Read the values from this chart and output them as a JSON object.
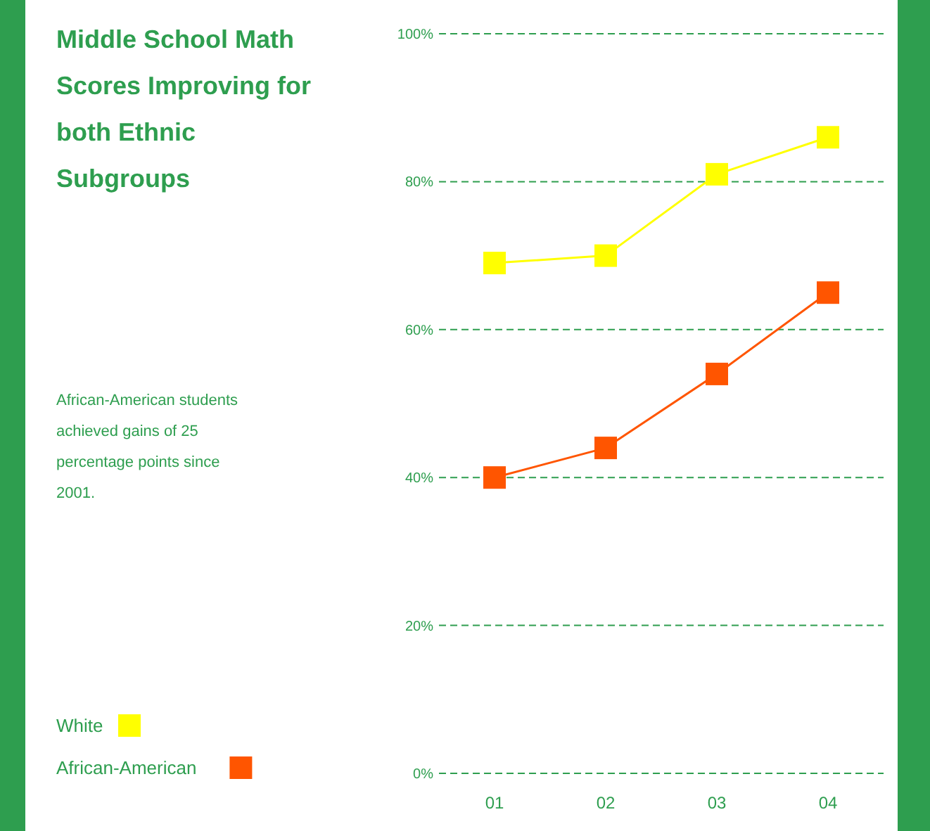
{
  "chart_data": {
    "type": "line",
    "title": "Middle School Math Scores Improving for both Ethnic Subgroups",
    "annotations": [
      "African-American students achieved gains of 25 percentage points since 2001."
    ],
    "categories": [
      "01",
      "02",
      "03",
      "04"
    ],
    "series": [
      {
        "name": "White",
        "color": "#ffff00",
        "values": [
          69,
          70,
          81,
          86
        ]
      },
      {
        "name": "African-American",
        "color": "#ff5500",
        "values": [
          40,
          44,
          54,
          65
        ]
      }
    ],
    "ylim": [
      0,
      100
    ],
    "yticks": [
      {
        "value": 0,
        "label": "0%"
      },
      {
        "value": 20,
        "label": "20%"
      },
      {
        "value": 40,
        "label": "40%"
      },
      {
        "value": 60,
        "label": "60%"
      },
      {
        "value": 80,
        "label": "80%"
      },
      {
        "value": 100,
        "label": "100%"
      }
    ],
    "grid": "y",
    "legend": "bottom left",
    "marker": "square",
    "line_style": "solid"
  }
}
